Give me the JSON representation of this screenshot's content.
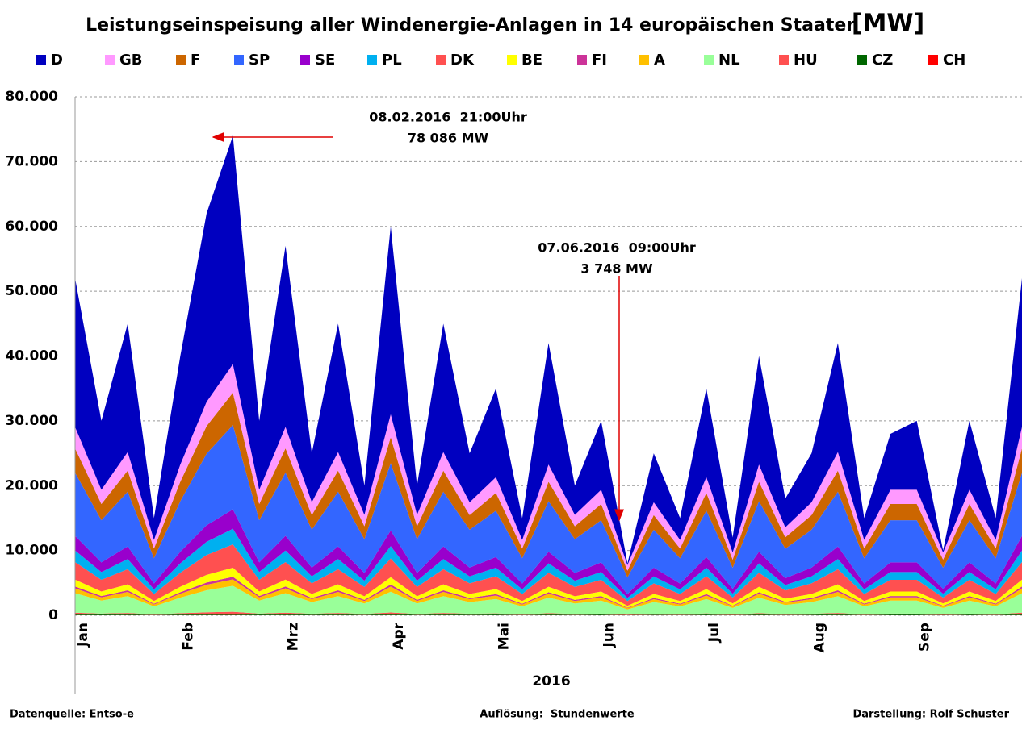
{
  "chart_data": {
    "type": "stacked_area",
    "title": "Leistungseinspeisung aller Windenergie-Anlagen in 14 europäischen Staaten",
    "unit_label": "[MW]",
    "xlabel": "2016",
    "categories": [
      "Jan",
      null,
      null,
      null,
      "Feb",
      null,
      null,
      null,
      "Mrz",
      null,
      null,
      null,
      "Apr",
      null,
      null,
      null,
      "Mai",
      null,
      null,
      null,
      "Jun",
      null,
      null,
      null,
      "Jul",
      null,
      null,
      null,
      "Aug",
      null,
      null,
      null,
      "Sep",
      null,
      null,
      null,
      null
    ],
    "ylim": [
      0,
      80000
    ],
    "yticks": [
      0,
      {
        "value": 10000,
        "label": "10.000"
      },
      {
        "value": 20000,
        "label": "20.000"
      },
      {
        "value": 30000,
        "label": "30.000"
      },
      {
        "value": 40000,
        "label": "40.000"
      },
      {
        "value": 50000,
        "label": "50.000"
      },
      {
        "value": 60000,
        "label": "60.000"
      },
      {
        "value": 70000,
        "label": "70.000"
      },
      {
        "value": 80000,
        "label": "80.000"
      }
    ],
    "grid": true,
    "series": [
      {
        "name": "D",
        "color": "#0000c0",
        "values": [
          22945,
          10630,
          19819,
          3378,
          16756,
          29071,
          35260,
          10630,
          27945,
          7567,
          19819,
          4504,
          29008,
          4504,
          19819,
          7567,
          13693,
          3378,
          18756,
          4504,
          10630,
          252,
          7567,
          3378,
          13693,
          2315,
          16756,
          4441,
          7567,
          16819,
          3378,
          8630,
          10630,
          315,
          10630,
          3378,
          22945
        ]
      },
      {
        "name": "GB",
        "color": "#ff99ff",
        "values": [
          3300,
          2200,
          2860,
          1320,
          2640,
          3740,
          4400,
          2200,
          3300,
          1980,
          2860,
          1760,
          3520,
          1760,
          2860,
          1980,
          2420,
          1320,
          2640,
          1760,
          2200,
          880,
          1980,
          1320,
          2420,
          1100,
          2640,
          1540,
          1980,
          2860,
          1320,
          2200,
          2200,
          1100,
          2200,
          1320,
          3300
        ]
      },
      {
        "name": "F",
        "color": "#cc6600",
        "values": [
          3750,
          2500,
          3250,
          1500,
          3000,
          4250,
          5000,
          2500,
          3750,
          2250,
          3250,
          2000,
          4000,
          2000,
          3250,
          2250,
          2750,
          1500,
          3000,
          2000,
          2500,
          1000,
          2250,
          1500,
          2750,
          1250,
          3000,
          1750,
          2250,
          3250,
          1500,
          2500,
          2500,
          1250,
          2500,
          1500,
          3750
        ]
      },
      {
        "name": "SP",
        "color": "#3366ff",
        "values": [
          9750,
          6500,
          8450,
          3900,
          7800,
          11050,
          13000,
          6500,
          9750,
          5850,
          8450,
          5200,
          10400,
          5200,
          8450,
          5850,
          7150,
          3900,
          7800,
          5200,
          6500,
          2600,
          5850,
          3900,
          7150,
          3250,
          7800,
          4550,
          5850,
          8450,
          3900,
          6500,
          6500,
          3250,
          6500,
          3900,
          9750
        ]
      },
      {
        "name": "SE",
        "color": "#9900cc",
        "values": [
          2250,
          1500,
          1950,
          900,
          1800,
          2550,
          3000,
          1500,
          2250,
          1350,
          1950,
          1200,
          2400,
          1200,
          1950,
          1350,
          1650,
          900,
          1800,
          1200,
          1500,
          600,
          1350,
          900,
          1650,
          750,
          1800,
          1050,
          1350,
          1950,
          900,
          1500,
          1500,
          750,
          1500,
          900,
          2250
        ]
      },
      {
        "name": "PL",
        "color": "#00b0f0",
        "values": [
          1800,
          1200,
          1560,
          720,
          1440,
          2040,
          2400,
          1200,
          1800,
          1080,
          1560,
          960,
          1920,
          960,
          1560,
          1080,
          1320,
          720,
          1440,
          960,
          1200,
          480,
          1080,
          720,
          1320,
          600,
          1440,
          840,
          1080,
          1560,
          720,
          1200,
          1200,
          600,
          1200,
          720,
          1800
        ]
      },
      {
        "name": "DK",
        "color": "#ff5050",
        "values": [
          2700,
          1800,
          2340,
          1080,
          2160,
          3060,
          3600,
          1800,
          2700,
          1620,
          2340,
          1440,
          2880,
          1440,
          2340,
          1620,
          1980,
          1080,
          2160,
          1440,
          1800,
          720,
          1620,
          1080,
          1980,
          900,
          2160,
          1260,
          1620,
          2340,
          1080,
          1800,
          1800,
          900,
          1800,
          1080,
          2700
        ]
      },
      {
        "name": "BE",
        "color": "#ffff00",
        "values": [
          1050,
          700,
          910,
          420,
          840,
          1190,
          1400,
          700,
          1050,
          630,
          910,
          560,
          1120,
          560,
          910,
          630,
          770,
          420,
          840,
          560,
          700,
          280,
          630,
          420,
          770,
          350,
          840,
          490,
          630,
          910,
          420,
          700,
          700,
          350,
          700,
          420,
          1050
        ]
      },
      {
        "name": "FI",
        "color": "#cc3399",
        "values": [
          300,
          200,
          260,
          120,
          240,
          340,
          400,
          200,
          300,
          180,
          260,
          160,
          320,
          160,
          260,
          180,
          220,
          120,
          240,
          160,
          200,
          80,
          180,
          120,
          220,
          100,
          240,
          140,
          180,
          260,
          120,
          200,
          200,
          100,
          200,
          120,
          300
        ]
      },
      {
        "name": "A",
        "color": "#ffc000",
        "values": [
          750,
          500,
          650,
          300,
          600,
          850,
          1000,
          500,
          750,
          450,
          650,
          400,
          800,
          400,
          650,
          450,
          550,
          300,
          600,
          400,
          500,
          200,
          450,
          300,
          550,
          250,
          600,
          350,
          450,
          650,
          300,
          500,
          500,
          250,
          500,
          300,
          750
        ]
      },
      {
        "name": "NL",
        "color": "#99ff99",
        "values": [
          3000,
          2000,
          2600,
          1200,
          2400,
          3400,
          4000,
          2000,
          3000,
          1800,
          2600,
          1600,
          3200,
          1600,
          2600,
          1800,
          2200,
          1200,
          2400,
          1600,
          2000,
          800,
          1800,
          1200,
          2200,
          1000,
          2400,
          1400,
          1800,
          2600,
          1200,
          2000,
          2000,
          1000,
          2000,
          1200,
          3000
        ]
      },
      {
        "name": "HU",
        "color": "#ff5050",
        "values": [
          225,
          150,
          195,
          90,
          180,
          255,
          300,
          150,
          225,
          135,
          195,
          120,
          240,
          120,
          195,
          135,
          165,
          90,
          180,
          120,
          150,
          60,
          135,
          90,
          165,
          75,
          180,
          105,
          135,
          195,
          90,
          150,
          150,
          75,
          150,
          90,
          225
        ]
      },
      {
        "name": "CZ",
        "color": "#006600",
        "values": [
          150,
          100,
          130,
          60,
          120,
          170,
          200,
          100,
          150,
          90,
          130,
          80,
          160,
          80,
          130,
          90,
          110,
          60,
          120,
          80,
          100,
          40,
          90,
          60,
          110,
          50,
          120,
          70,
          90,
          130,
          60,
          100,
          100,
          50,
          100,
          60,
          150
        ]
      },
      {
        "name": "CH",
        "color": "#ff0000",
        "values": [
          30,
          20,
          26,
          12,
          24,
          34,
          40,
          20,
          30,
          18,
          26,
          16,
          32,
          16,
          26,
          18,
          22,
          12,
          24,
          16,
          20,
          8,
          18,
          12,
          22,
          10,
          24,
          14,
          18,
          26,
          12,
          20,
          20,
          10,
          20,
          12,
          30
        ]
      }
    ],
    "annotations": [
      "08.02.2016  21:00Uhr",
      "78 086 MW",
      "07.06.2016  09:00Uhr",
      "3 748 MW"
    ],
    "footer": [
      "Datenquelle: Entso-e",
      "Auflösung:  Stundenwerte",
      "Darstellung: Rolf Schuster"
    ]
  }
}
